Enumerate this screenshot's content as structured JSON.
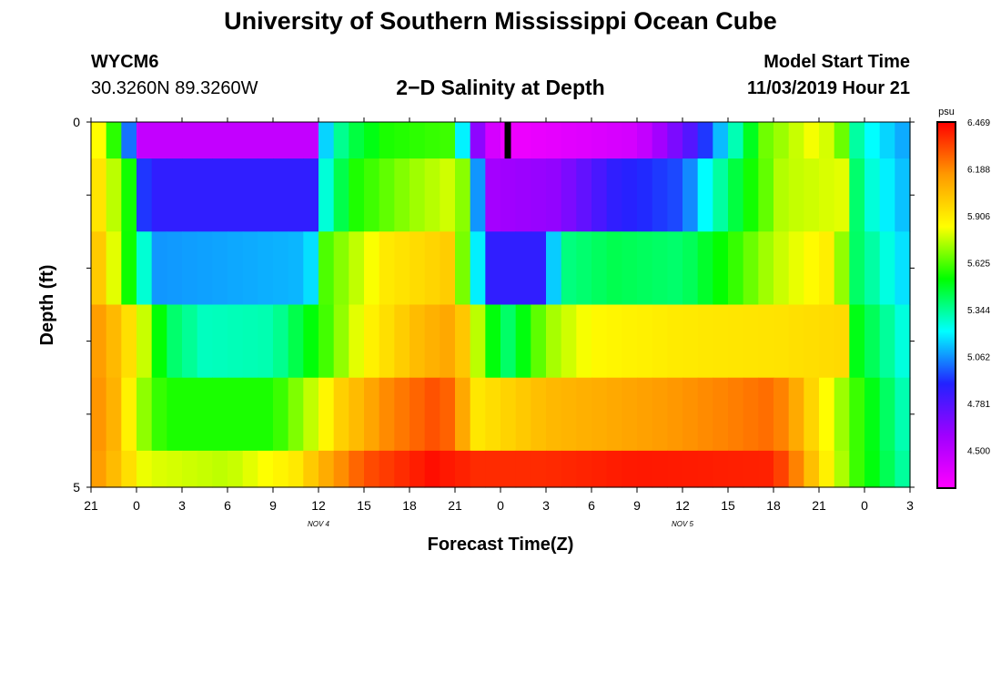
{
  "header": {
    "title": "University of Southern Mississippi Ocean Cube",
    "station_id": "WYCM6",
    "station_coords": "30.3260N 89.3260W",
    "chart_title": "2−D Salinity at Depth",
    "model_start_label": "Model Start Time",
    "model_start_value": "11/03/2019 Hour 21"
  },
  "footer": {
    "title": "University of Southern Mississippi Ocean Cube"
  },
  "chart_data": {
    "type": "heatmap",
    "xlabel": "Forecast Time(Z)",
    "ylabel": "Depth (ft)",
    "y_tick_labels": [
      "0",
      "5"
    ],
    "ylim": [
      0,
      5
    ],
    "y_inverted": true,
    "x_tick_labels": [
      "21",
      "0",
      "3",
      "6",
      "9",
      "12",
      "15",
      "18",
      "21",
      "0",
      "3",
      "6",
      "9",
      "12",
      "15",
      "18",
      "21",
      "0",
      "3"
    ],
    "day_labels": [
      {
        "text": "NOV 4",
        "tick_index": 5
      },
      {
        "text": "NOV 5",
        "tick_index": 13
      }
    ],
    "now_marker_tick": 9.15,
    "colorbar": {
      "unit": "psu",
      "min": 4.25,
      "max": 6.469,
      "tick_labels": [
        "6.469",
        "6.188",
        "5.906",
        "5.625",
        "5.344",
        "5.062",
        "4.781",
        "4.500"
      ],
      "colors": [
        "#ff00ff",
        "#a000ff",
        "#2222ff",
        "#00ffff",
        "#00ff00",
        "#ffff00",
        "#ff9900",
        "#ff0000"
      ]
    },
    "depth_rows": [
      {
        "name": "0-0.5",
        "knots": [
          [
            0,
            5.95
          ],
          [
            0.3,
            5.75
          ],
          [
            0.6,
            5.48
          ],
          [
            1.1,
            4.45
          ],
          [
            4.9,
            4.45
          ],
          [
            5.1,
            5.1
          ],
          [
            5.6,
            5.4
          ],
          [
            6.5,
            5.55
          ],
          [
            8.0,
            5.6
          ],
          [
            8.2,
            5.1
          ],
          [
            8.6,
            4.45
          ],
          [
            9.2,
            4.3
          ],
          [
            12.0,
            4.4
          ],
          [
            13.3,
            4.8
          ],
          [
            14.0,
            5.2
          ],
          [
            14.8,
            5.65
          ],
          [
            16.0,
            5.85
          ],
          [
            16.5,
            5.65
          ],
          [
            16.9,
            5.25
          ],
          [
            18.0,
            5.05
          ]
        ]
      },
      {
        "name": "0.5-1.5",
        "knots": [
          [
            0,
            6.0
          ],
          [
            0.4,
            5.8
          ],
          [
            0.8,
            5.6
          ],
          [
            1.2,
            4.85
          ],
          [
            4.9,
            4.85
          ],
          [
            5.2,
            5.3
          ],
          [
            5.8,
            5.55
          ],
          [
            7.0,
            5.7
          ],
          [
            8.1,
            5.8
          ],
          [
            8.4,
            5.3
          ],
          [
            8.7,
            4.55
          ],
          [
            10.2,
            4.6
          ],
          [
            11.5,
            4.85
          ],
          [
            13.0,
            4.95
          ],
          [
            13.5,
            5.2
          ],
          [
            14.2,
            5.45
          ],
          [
            15.2,
            5.75
          ],
          [
            16.5,
            5.8
          ],
          [
            16.9,
            5.3
          ],
          [
            18.0,
            5.08
          ]
        ]
      },
      {
        "name": "1.5-2.5",
        "knots": [
          [
            0,
            6.1
          ],
          [
            0.5,
            5.8
          ],
          [
            1.0,
            5.4
          ],
          [
            1.4,
            5.05
          ],
          [
            4.8,
            5.1
          ],
          [
            5.1,
            5.6
          ],
          [
            6.5,
            5.9
          ],
          [
            8.0,
            6.0
          ],
          [
            8.3,
            5.4
          ],
          [
            8.8,
            4.85
          ],
          [
            10.0,
            4.85
          ],
          [
            10.3,
            5.35
          ],
          [
            11.5,
            5.42
          ],
          [
            13.0,
            5.38
          ],
          [
            14.0,
            5.55
          ],
          [
            15.0,
            5.75
          ],
          [
            16.3,
            5.9
          ],
          [
            16.8,
            5.4
          ],
          [
            18.0,
            5.12
          ]
        ]
      },
      {
        "name": "2.5-3.5",
        "knots": [
          [
            0,
            6.18
          ],
          [
            0.7,
            6.0
          ],
          [
            1.3,
            5.7
          ],
          [
            1.6,
            5.42
          ],
          [
            2.5,
            5.28
          ],
          [
            4.0,
            5.3
          ],
          [
            5.0,
            5.55
          ],
          [
            6.0,
            5.85
          ],
          [
            7.2,
            6.05
          ],
          [
            8.0,
            6.12
          ],
          [
            8.4,
            5.85
          ],
          [
            8.7,
            5.55
          ],
          [
            9.2,
            5.38
          ],
          [
            10.0,
            5.7
          ],
          [
            11.0,
            5.85
          ],
          [
            13.0,
            5.9
          ],
          [
            15.0,
            5.92
          ],
          [
            16.5,
            5.95
          ],
          [
            16.8,
            5.5
          ],
          [
            18.0,
            5.2
          ]
        ]
      },
      {
        "name": "3.5-4.5",
        "knots": [
          [
            0,
            6.2
          ],
          [
            0.6,
            6.05
          ],
          [
            1.0,
            5.75
          ],
          [
            1.6,
            5.55
          ],
          [
            4.0,
            5.55
          ],
          [
            5.0,
            5.8
          ],
          [
            5.5,
            5.98
          ],
          [
            6.5,
            6.18
          ],
          [
            7.5,
            6.3
          ],
          [
            8.0,
            6.25
          ],
          [
            8.4,
            5.9
          ],
          [
            10.0,
            6.05
          ],
          [
            12.0,
            6.12
          ],
          [
            14.0,
            6.2
          ],
          [
            15.0,
            6.25
          ],
          [
            15.5,
            6.1
          ],
          [
            16.0,
            5.9
          ],
          [
            16.8,
            5.6
          ],
          [
            18.0,
            5.25
          ]
        ]
      },
      {
        "name": "4.5-5",
        "knots": [
          [
            0,
            6.18
          ],
          [
            0.6,
            6.02
          ],
          [
            1.2,
            5.8
          ],
          [
            3.0,
            5.75
          ],
          [
            4.5,
            5.9
          ],
          [
            5.0,
            6.05
          ],
          [
            6.0,
            6.3
          ],
          [
            7.5,
            6.44
          ],
          [
            8.5,
            6.38
          ],
          [
            10.0,
            6.38
          ],
          [
            12.0,
            6.42
          ],
          [
            15.0,
            6.4
          ],
          [
            15.5,
            6.2
          ],
          [
            16.0,
            5.95
          ],
          [
            16.8,
            5.6
          ],
          [
            18.0,
            5.28
          ]
        ]
      }
    ]
  }
}
